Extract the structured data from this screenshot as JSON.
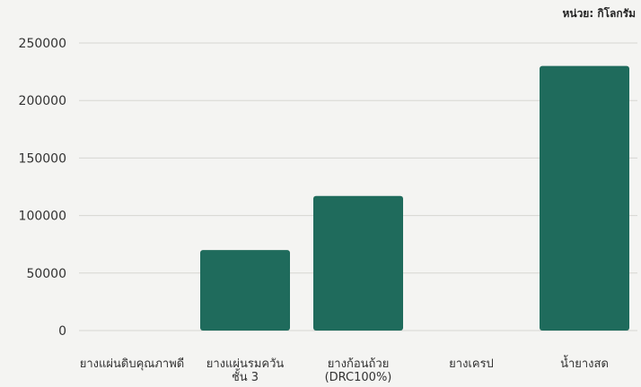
{
  "chart_data": {
    "type": "bar",
    "unit_label": "หน่วย: กิโลกรัม",
    "categories": [
      [
        "ยางแผ่นดิบคุณภาพดี"
      ],
      [
        "ยางแผ่นรมควัน",
        "ชั้น 3"
      ],
      [
        "ยางก้อนถ้วย",
        "(DRC100%)"
      ],
      [
        "ยางเครป"
      ],
      [
        "น้ำยางสด"
      ]
    ],
    "values": [
      0,
      70000,
      117000,
      0,
      230000
    ],
    "yticks": [
      "0",
      "50000",
      "100000",
      "150000",
      "200000",
      "250000"
    ],
    "ylim": [
      0,
      250000
    ],
    "grid": true,
    "bar_color": "#1f6b5c",
    "grid_color": "#d6d6d2",
    "text_color": "#333333"
  }
}
